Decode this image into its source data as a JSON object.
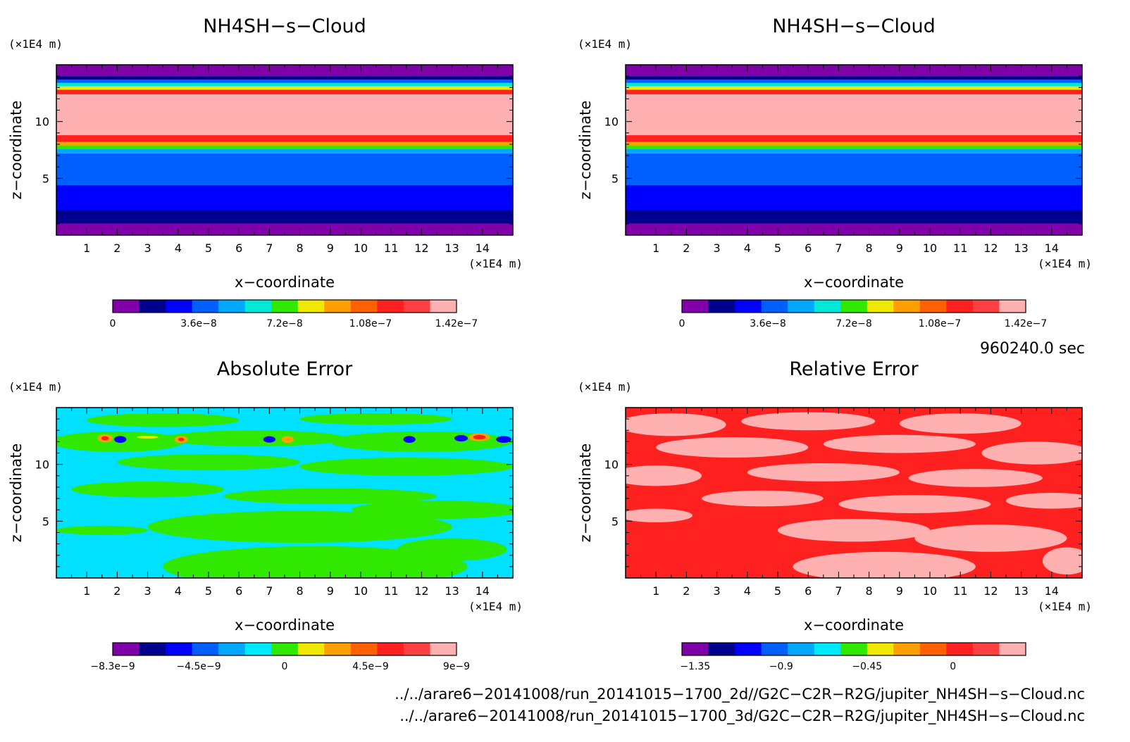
{
  "chart_data": [
    {
      "type": "heatmap",
      "title": "NH4SH−s−Cloud",
      "xlabel": "x−coordinate",
      "ylabel": "z−coordinate",
      "x_unit": "(×1E4 m)",
      "z_unit": "(×1E4 m)",
      "xlim": [
        0,
        15
      ],
      "zlim": [
        0,
        15
      ],
      "x_ticks": [
        "1",
        "2",
        "3",
        "4",
        "5",
        "6",
        "7",
        "8",
        "9",
        "10",
        "11",
        "12",
        "13",
        "14"
      ],
      "z_ticks": [
        "5",
        "10"
      ],
      "colorbar": {
        "colors": [
          "#7f00a8",
          "#00008f",
          "#0000ff",
          "#0060ff",
          "#00a8ff",
          "#00e8d8",
          "#30e800",
          "#f0e800",
          "#ffa000",
          "#ff6000",
          "#ff2020",
          "#ff4040",
          "#ffb0b0"
        ],
        "tick_labels": [
          "0",
          "3.6e−8",
          "7.2e−8",
          "1.08e−7",
          "1.42e−7"
        ]
      },
      "bands": [
        {
          "z": [
            0,
            1.0
          ],
          "color": "#7f00a8"
        },
        {
          "z": [
            1.0,
            2.2
          ],
          "color": "#00008f"
        },
        {
          "z": [
            2.2,
            4.4
          ],
          "color": "#0000ff"
        },
        {
          "z": [
            4.4,
            7.2
          ],
          "color": "#0060ff"
        },
        {
          "z": [
            7.2,
            7.6
          ],
          "color": "#00a8ff"
        },
        {
          "z": [
            7.6,
            7.9
          ],
          "color": "#30e800"
        },
        {
          "z": [
            7.9,
            8.2
          ],
          "color": "#ffa000"
        },
        {
          "z": [
            8.2,
            8.8
          ],
          "color": "#ff2020"
        },
        {
          "z": [
            8.8,
            12.4
          ],
          "color": "#ffb0b0"
        },
        {
          "z": [
            12.4,
            12.8
          ],
          "color": "#ff2020"
        },
        {
          "z": [
            12.8,
            13.1
          ],
          "color": "#f0e800"
        },
        {
          "z": [
            13.1,
            13.4
          ],
          "color": "#00e8d8"
        },
        {
          "z": [
            13.4,
            13.7
          ],
          "color": "#0060ff"
        },
        {
          "z": [
            13.7,
            14.0
          ],
          "color": "#00008f"
        },
        {
          "z": [
            14.0,
            15.0
          ],
          "color": "#7f00a8"
        }
      ]
    },
    {
      "type": "heatmap",
      "title": "NH4SH−s−Cloud",
      "xlabel": "x−coordinate",
      "ylabel": "z−coordinate",
      "x_unit": "(×1E4 m)",
      "z_unit": "(×1E4 m)",
      "xlim": [
        0,
        15
      ],
      "zlim": [
        0,
        15
      ],
      "x_ticks": [
        "1",
        "2",
        "3",
        "4",
        "5",
        "6",
        "7",
        "8",
        "9",
        "10",
        "11",
        "12",
        "13",
        "14"
      ],
      "z_ticks": [
        "5",
        "10"
      ],
      "colorbar": {
        "colors": [
          "#7f00a8",
          "#00008f",
          "#0000ff",
          "#0060ff",
          "#00a8ff",
          "#00e8d8",
          "#30e800",
          "#f0e800",
          "#ffa000",
          "#ff6000",
          "#ff2020",
          "#ff4040",
          "#ffb0b0"
        ],
        "tick_labels": [
          "0",
          "3.6e−8",
          "7.2e−8",
          "1.08e−7",
          "1.42e−7"
        ]
      },
      "bands": [
        {
          "z": [
            0,
            1.0
          ],
          "color": "#7f00a8"
        },
        {
          "z": [
            1.0,
            2.2
          ],
          "color": "#00008f"
        },
        {
          "z": [
            2.2,
            4.4
          ],
          "color": "#0000ff"
        },
        {
          "z": [
            4.4,
            7.2
          ],
          "color": "#0060ff"
        },
        {
          "z": [
            7.2,
            7.6
          ],
          "color": "#00a8ff"
        },
        {
          "z": [
            7.6,
            7.9
          ],
          "color": "#30e800"
        },
        {
          "z": [
            7.9,
            8.2
          ],
          "color": "#ffa000"
        },
        {
          "z": [
            8.2,
            8.8
          ],
          "color": "#ff2020"
        },
        {
          "z": [
            8.8,
            12.4
          ],
          "color": "#ffb0b0"
        },
        {
          "z": [
            12.4,
            12.8
          ],
          "color": "#ff2020"
        },
        {
          "z": [
            12.8,
            13.1
          ],
          "color": "#f0e800"
        },
        {
          "z": [
            13.1,
            13.4
          ],
          "color": "#00e8d8"
        },
        {
          "z": [
            13.4,
            13.7
          ],
          "color": "#0060ff"
        },
        {
          "z": [
            13.7,
            14.0
          ],
          "color": "#00008f"
        },
        {
          "z": [
            14.0,
            15.0
          ],
          "color": "#7f00a8"
        }
      ]
    },
    {
      "type": "heatmap",
      "title": "Absolute Error",
      "xlabel": "x−coordinate",
      "ylabel": "z−coordinate",
      "x_unit": "(×1E4 m)",
      "z_unit": "(×1E4 m)",
      "xlim": [
        0,
        15
      ],
      "zlim": [
        0,
        15
      ],
      "x_ticks": [
        "1",
        "2",
        "3",
        "4",
        "5",
        "6",
        "7",
        "8",
        "9",
        "10",
        "11",
        "12",
        "13",
        "14"
      ],
      "z_ticks": [
        "5",
        "10"
      ],
      "colorbar": {
        "colors": [
          "#7f00a8",
          "#00008f",
          "#0000ff",
          "#0060ff",
          "#00a8ff",
          "#00e8ff",
          "#30e800",
          "#f0e800",
          "#ffa000",
          "#ff6000",
          "#ff2020",
          "#ff4040",
          "#ffb0b0"
        ],
        "tick_labels": [
          "−8.3e−9",
          "−4.5e−9",
          "0",
          "4.5e−9",
          "9e−9"
        ]
      },
      "background": "#00e0ff",
      "blobs": [
        {
          "x": 2.0,
          "z": 12.0,
          "rx": 2.2,
          "rz": 0.9,
          "color": "#30e800"
        },
        {
          "x": 6.5,
          "z": 12.3,
          "rx": 3.0,
          "rz": 0.7,
          "color": "#30e800"
        },
        {
          "x": 12.0,
          "z": 12.0,
          "rx": 3.0,
          "rz": 0.9,
          "color": "#30e800"
        },
        {
          "x": 5.0,
          "z": 10.2,
          "rx": 3.0,
          "rz": 0.7,
          "color": "#30e800"
        },
        {
          "x": 11.5,
          "z": 9.8,
          "rx": 3.5,
          "rz": 0.8,
          "color": "#30e800"
        },
        {
          "x": 3.0,
          "z": 7.8,
          "rx": 2.5,
          "rz": 0.7,
          "color": "#30e800"
        },
        {
          "x": 9.0,
          "z": 7.2,
          "rx": 3.5,
          "rz": 0.7,
          "color": "#30e800"
        },
        {
          "x": 12.5,
          "z": 6.0,
          "rx": 2.8,
          "rz": 0.8,
          "color": "#30e800"
        },
        {
          "x": 8.0,
          "z": 4.5,
          "rx": 5.0,
          "rz": 1.4,
          "color": "#30e800"
        },
        {
          "x": 8.5,
          "z": 1.0,
          "rx": 5.0,
          "rz": 1.8,
          "color": "#30e800"
        },
        {
          "x": 13.0,
          "z": 2.5,
          "rx": 1.8,
          "rz": 1.0,
          "color": "#30e800"
        },
        {
          "x": 1.5,
          "z": 4.2,
          "rx": 1.5,
          "rz": 0.4,
          "color": "#30e800"
        },
        {
          "x": 3.5,
          "z": 13.9,
          "rx": 2.5,
          "rz": 0.6,
          "color": "#30e800"
        },
        {
          "x": 10.5,
          "z": 14.0,
          "rx": 2.5,
          "rz": 0.5,
          "color": "#30e800"
        },
        {
          "x": 1.6,
          "z": 12.3,
          "rx": 0.25,
          "rz": 0.35,
          "color": "#ffa000"
        },
        {
          "x": 1.6,
          "z": 12.3,
          "rx": 0.12,
          "rz": 0.18,
          "color": "#ff2020"
        },
        {
          "x": 2.1,
          "z": 12.2,
          "rx": 0.2,
          "rz": 0.3,
          "color": "#0000ff"
        },
        {
          "x": 4.1,
          "z": 12.2,
          "rx": 0.22,
          "rz": 0.3,
          "color": "#ffa000"
        },
        {
          "x": 4.1,
          "z": 12.2,
          "rx": 0.1,
          "rz": 0.15,
          "color": "#ff2020"
        },
        {
          "x": 7.0,
          "z": 12.2,
          "rx": 0.2,
          "rz": 0.28,
          "color": "#0000ff"
        },
        {
          "x": 7.6,
          "z": 12.2,
          "rx": 0.2,
          "rz": 0.3,
          "color": "#ffa000"
        },
        {
          "x": 11.6,
          "z": 12.2,
          "rx": 0.2,
          "rz": 0.3,
          "color": "#0000ff"
        },
        {
          "x": 13.3,
          "z": 12.3,
          "rx": 0.22,
          "rz": 0.28,
          "color": "#0000ff"
        },
        {
          "x": 13.9,
          "z": 12.4,
          "rx": 0.35,
          "rz": 0.35,
          "color": "#ffa000"
        },
        {
          "x": 13.9,
          "z": 12.4,
          "rx": 0.2,
          "rz": 0.2,
          "color": "#ff2020"
        },
        {
          "x": 14.7,
          "z": 12.2,
          "rx": 0.25,
          "rz": 0.3,
          "color": "#0000ff"
        },
        {
          "x": 3.0,
          "z": 12.4,
          "rx": 0.35,
          "rz": 0.12,
          "color": "#f0e800"
        }
      ]
    },
    {
      "type": "heatmap",
      "title": "Relative Error",
      "xlabel": "x−coordinate",
      "ylabel": "z−coordinate",
      "x_unit": "(×1E4 m)",
      "z_unit": "(×1E4 m)",
      "xlim": [
        0,
        15
      ],
      "zlim": [
        0,
        15
      ],
      "x_ticks": [
        "1",
        "2",
        "3",
        "4",
        "5",
        "6",
        "7",
        "8",
        "9",
        "10",
        "11",
        "12",
        "13",
        "14"
      ],
      "z_ticks": [
        "5",
        "10"
      ],
      "colorbar": {
        "colors": [
          "#7f00a8",
          "#00008f",
          "#0000ff",
          "#0060ff",
          "#00a8ff",
          "#00e8ff",
          "#30e800",
          "#f0e800",
          "#ffa000",
          "#ff6000",
          "#ff2020",
          "#ff4040",
          "#ffb0b0"
        ],
        "tick_labels": [
          "−1.35",
          "−0.9",
          "−0.45",
          "0"
        ]
      },
      "background": "#ff2020",
      "blobs": [
        {
          "x": 1.5,
          "z": 13.5,
          "rx": 1.8,
          "rz": 1.0,
          "color": "#ffb0b0"
        },
        {
          "x": 6.0,
          "z": 13.8,
          "rx": 2.2,
          "rz": 0.8,
          "color": "#ffb0b0"
        },
        {
          "x": 11.0,
          "z": 13.6,
          "rx": 2.0,
          "rz": 0.9,
          "color": "#ffb0b0"
        },
        {
          "x": 3.5,
          "z": 11.5,
          "rx": 2.5,
          "rz": 0.9,
          "color": "#ffb0b0"
        },
        {
          "x": 9.0,
          "z": 11.8,
          "rx": 2.5,
          "rz": 0.8,
          "color": "#ffb0b0"
        },
        {
          "x": 13.5,
          "z": 11.0,
          "rx": 1.8,
          "rz": 1.0,
          "color": "#ffb0b0"
        },
        {
          "x": 1.0,
          "z": 9.0,
          "rx": 1.5,
          "rz": 0.9,
          "color": "#ffb0b0"
        },
        {
          "x": 6.5,
          "z": 9.3,
          "rx": 2.5,
          "rz": 0.8,
          "color": "#ffb0b0"
        },
        {
          "x": 11.5,
          "z": 8.8,
          "rx": 2.2,
          "rz": 0.8,
          "color": "#ffb0b0"
        },
        {
          "x": 4.5,
          "z": 7.0,
          "rx": 2.0,
          "rz": 0.7,
          "color": "#ffb0b0"
        },
        {
          "x": 9.5,
          "z": 6.5,
          "rx": 2.5,
          "rz": 0.8,
          "color": "#ffb0b0"
        },
        {
          "x": 14.0,
          "z": 6.8,
          "rx": 1.5,
          "rz": 0.7,
          "color": "#ffb0b0"
        },
        {
          "x": 7.5,
          "z": 4.2,
          "rx": 2.5,
          "rz": 1.0,
          "color": "#ffb0b0"
        },
        {
          "x": 12.0,
          "z": 3.5,
          "rx": 2.5,
          "rz": 1.2,
          "color": "#ffb0b0"
        },
        {
          "x": 8.5,
          "z": 1.0,
          "rx": 3.0,
          "rz": 1.3,
          "color": "#ffb0b0"
        },
        {
          "x": 1.0,
          "z": 5.5,
          "rx": 1.2,
          "rz": 0.6,
          "color": "#ffb0b0"
        },
        {
          "x": 14.5,
          "z": 1.5,
          "rx": 0.8,
          "rz": 1.2,
          "color": "#ffb0b0"
        }
      ]
    }
  ],
  "time_label": "960240.0 sec",
  "file_paths": [
    "../../arare6−20141008/run_20141015−1700_2d//G2C−C2R−R2G/jupiter_NH4SH−s−Cloud.nc",
    "../../arare6−20141008/run_20141015−1700_3d/G2C−C2R−R2G/jupiter_NH4SH−s−Cloud.nc"
  ]
}
